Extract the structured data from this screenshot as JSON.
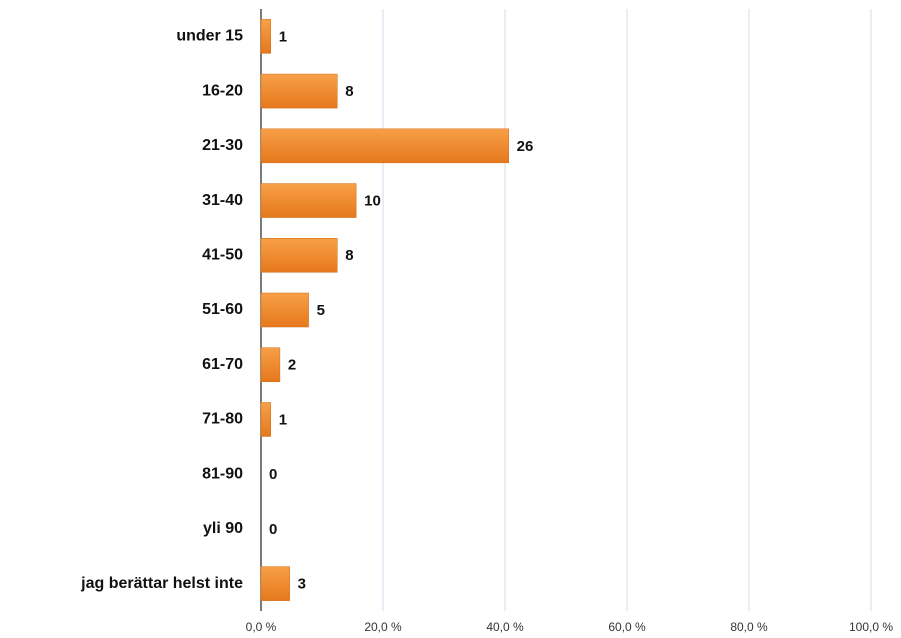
{
  "chart_data": {
    "type": "bar",
    "orientation": "horizontal",
    "categories": [
      "under 15",
      "16-20",
      "21-30",
      "31-40",
      "41-50",
      "51-60",
      "61-70",
      "71-80",
      "81-90",
      "yli 90",
      "jag berättar helst inte"
    ],
    "values": [
      1.6,
      12.5,
      40.6,
      15.6,
      12.5,
      7.8,
      3.1,
      1.6,
      0,
      0,
      4.7
    ],
    "counts": [
      1,
      8,
      26,
      10,
      8,
      5,
      2,
      1,
      0,
      0,
      3
    ],
    "color": "#f28a2e",
    "xlim": [
      0,
      100
    ],
    "xticks": [
      {
        "value": 0,
        "label": "0,0 %"
      },
      {
        "value": 20,
        "label": "20,0 %"
      },
      {
        "value": 40,
        "label": "40,0 %"
      },
      {
        "value": 60,
        "label": "60,0 %"
      },
      {
        "value": 80,
        "label": "80,0 %"
      },
      {
        "value": 100,
        "label": "100,0 %"
      }
    ],
    "grid": true
  }
}
